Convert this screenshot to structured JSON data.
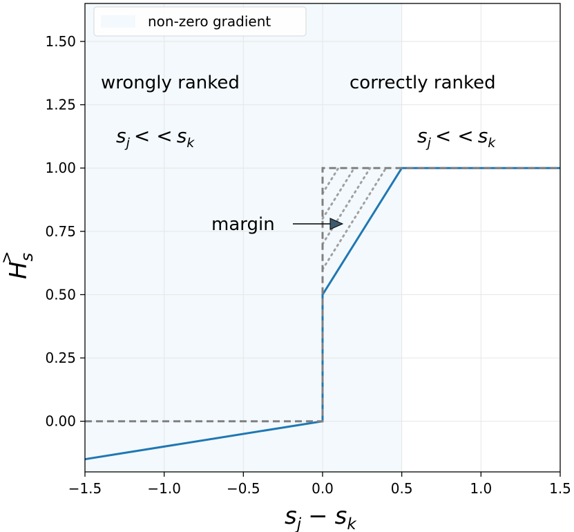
{
  "chart_data": {
    "type": "line",
    "xlim": [
      -1.5,
      1.5
    ],
    "ylim": [
      -0.2,
      1.65
    ],
    "x_ticks": [
      -1.5,
      -1.0,
      -0.5,
      0.0,
      0.5,
      1.0,
      1.5
    ],
    "x_tick_labels": [
      "−1.5",
      "−1.0",
      "−0.5",
      "0.0",
      "0.5",
      "1.0",
      "1.5"
    ],
    "y_ticks": [
      0.0,
      0.25,
      0.5,
      0.75,
      1.0,
      1.25,
      1.5
    ],
    "y_tick_labels": [
      "0.00",
      "0.25",
      "0.50",
      "0.75",
      "1.00",
      "1.25",
      "1.50"
    ],
    "xlabel": "s_j − s_k",
    "ylabel": "H_s^>",
    "grid": true,
    "legend": {
      "position": "top-left",
      "entries": [
        {
          "label": "non-zero gradient",
          "color": "#e8f3f8"
        }
      ]
    },
    "shaded_region": {
      "x": [
        -1.5,
        0.5
      ],
      "label": "non-zero gradient",
      "color": "#e8f3f8"
    },
    "series": [
      {
        "style": "solid",
        "color": "#1f77b4",
        "x": [
          -1.5,
          0.0,
          0.0,
          0.5,
          1.5
        ],
        "y": [
          -0.15,
          0.0,
          0.5,
          1.0,
          1.0
        ]
      },
      {
        "style": "dashed",
        "color": "#808080",
        "x": [
          -1.5,
          0.0,
          0.0,
          1.5
        ],
        "y": [
          0.0,
          0.0,
          1.0,
          1.0
        ]
      },
      {
        "style": "dotted",
        "color": "#a0a0a0",
        "lines": [
          {
            "x": [
              0.0,
              0.4
            ],
            "y": [
              0.6,
              1.0
            ]
          },
          {
            "x": [
              0.0,
              0.3
            ],
            "y": [
              0.7,
              1.0
            ]
          },
          {
            "x": [
              0.0,
              0.2
            ],
            "y": [
              0.8,
              1.0
            ]
          },
          {
            "x": [
              0.0,
              0.1
            ],
            "y": [
              0.9,
              1.0
            ]
          }
        ]
      }
    ],
    "annotations": [
      {
        "text": "wrongly ranked"
      },
      {
        "text": "correctly ranked"
      },
      {
        "text": "margin"
      }
    ],
    "region_labels": {
      "left": {
        "s1": "s",
        "sub1": "j",
        "op": "< <",
        "s2": "s",
        "sub2": "k"
      },
      "right": {
        "s1": "s",
        "sub1": "j",
        "op": "< <",
        "s2": "s",
        "sub2": "k"
      }
    },
    "xlabel_parts": {
      "s1": "s",
      "sub1": "j",
      "op": "−",
      "s2": "s",
      "sub2": "k"
    },
    "ylabel_parts": {
      "base": "H",
      "sub": "s",
      "sup": ">"
    }
  }
}
